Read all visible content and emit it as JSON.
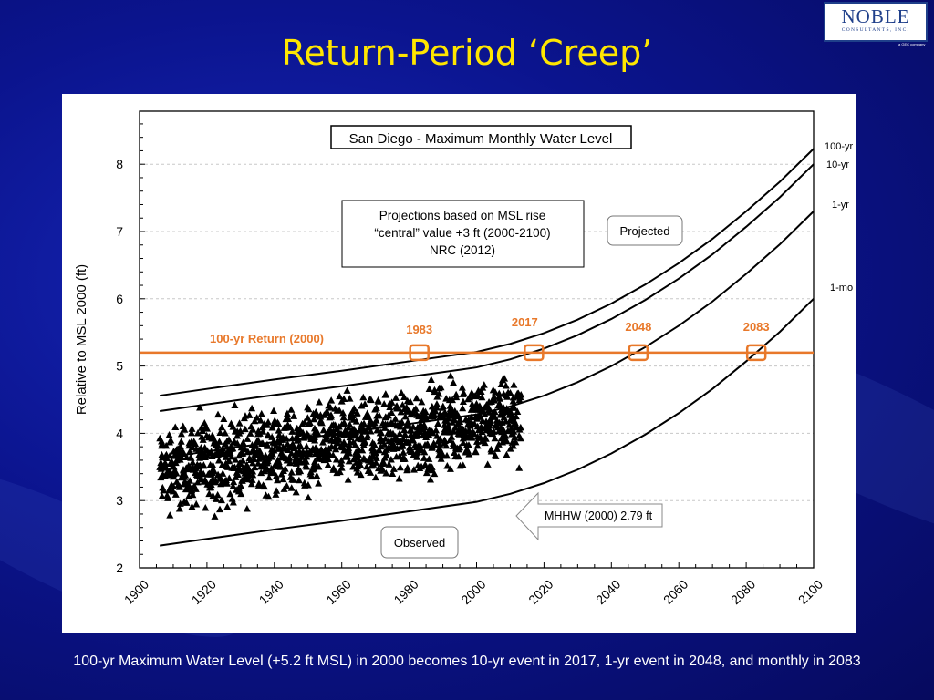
{
  "slide": {
    "title": "Return-Period ‘Creep’",
    "caption": "100-yr Maximum Water Level (+5.2 ft MSL) in 2000 becomes 10-yr event in 2017, 1-yr event in 2048, and monthly in 2083",
    "logo": {
      "name": "NOBLE",
      "sub": "CONSULTANTS, INC.",
      "tag": "a GEC company"
    }
  },
  "colors": {
    "accent": "#e8782a",
    "title": "#ffe600",
    "background": "#0b148e"
  },
  "chart_data": {
    "type": "scatter",
    "title": "San Diego - Maximum Monthly Water Level",
    "xlabel": "",
    "ylabel": "Relative to MSL 2000 (ft)",
    "xlim": [
      1900,
      2100
    ],
    "ylim": [
      2,
      8.8
    ],
    "grid": "horizontal dashed",
    "x_ticks": [
      "1900",
      "1920",
      "1940",
      "1960",
      "1980",
      "2000",
      "2020",
      "2040",
      "2060",
      "2080",
      "2100"
    ],
    "y_ticks": [
      "2",
      "3",
      "4",
      "5",
      "6",
      "7",
      "8"
    ],
    "observed": {
      "name": "Observed",
      "years": [
        1906,
        2013
      ],
      "mean_start": 3.45,
      "mean_end": 4.25,
      "spread": 0.65,
      "count": 1290
    },
    "curves_x": [
      1906,
      1920,
      1940,
      1960,
      1980,
      2000,
      2010,
      2020,
      2030,
      2040,
      2050,
      2060,
      2070,
      2080,
      2090,
      2100
    ],
    "curves": [
      {
        "name": "100-yr",
        "values": [
          4.56,
          4.66,
          4.8,
          4.93,
          5.07,
          5.21,
          5.33,
          5.49,
          5.69,
          5.93,
          6.21,
          6.53,
          6.89,
          7.3,
          7.74,
          8.23
        ]
      },
      {
        "name": "10-yr",
        "values": [
          4.33,
          4.43,
          4.57,
          4.7,
          4.84,
          4.98,
          5.1,
          5.26,
          5.46,
          5.7,
          5.98,
          6.3,
          6.66,
          7.07,
          7.51,
          8.0
        ]
      },
      {
        "name": "1-yr",
        "values": [
          3.63,
          3.73,
          3.87,
          4.0,
          4.14,
          4.28,
          4.4,
          4.56,
          4.76,
          5.0,
          5.28,
          5.6,
          5.96,
          6.37,
          6.81,
          7.3
        ]
      },
      {
        "name": "1-mo",
        "values": [
          2.33,
          2.43,
          2.57,
          2.7,
          2.84,
          2.98,
          3.1,
          3.26,
          3.46,
          3.7,
          3.98,
          4.3,
          4.66,
          5.07,
          5.51,
          6.0
        ]
      }
    ],
    "threshold": {
      "label": "100-yr Return (2000)",
      "value": 5.2
    },
    "crossings": [
      {
        "label": "1983",
        "year": 1983
      },
      {
        "label": "2017",
        "year": 2017
      },
      {
        "label": "2048",
        "year": 2048
      },
      {
        "label": "2083",
        "year": 2083
      }
    ],
    "annotations": {
      "projections": [
        "Projections based on MSL rise",
        "“central” value +3 ft (2000-2100)",
        "NRC (2012)"
      ],
      "projected": "Projected",
      "observed": "Observed",
      "mhhw": "MHHW (2000) 2.79 ft"
    }
  }
}
